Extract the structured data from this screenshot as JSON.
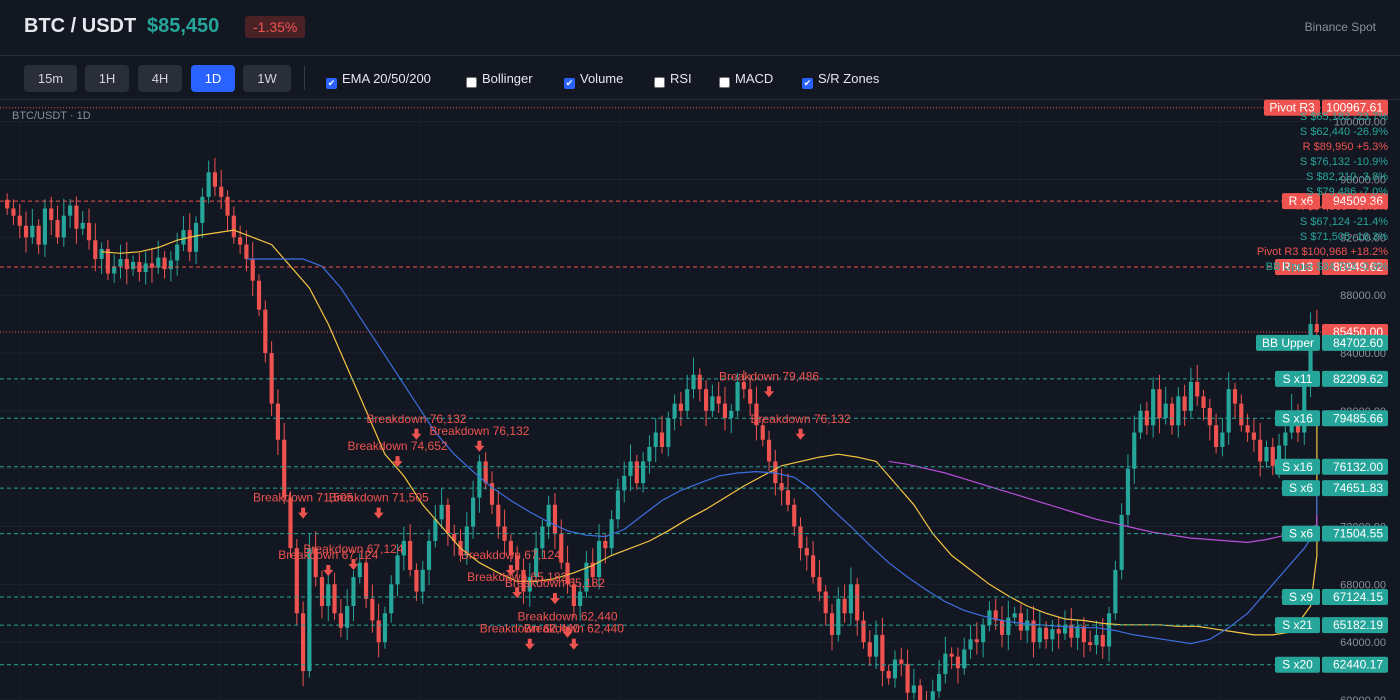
{
  "header": {
    "pair": "BTC / USDT",
    "price": "$85,450",
    "change": "-1.35%",
    "exchange": "Binance Spot"
  },
  "timeframes": [
    {
      "label": "15m",
      "active": false
    },
    {
      "label": "1H",
      "active": false
    },
    {
      "label": "4H",
      "active": false
    },
    {
      "label": "1D",
      "active": true
    },
    {
      "label": "1W",
      "active": false
    }
  ],
  "indicators": [
    {
      "label": "EMA 20/50/200",
      "checked": true
    },
    {
      "label": "Bollinger",
      "checked": false
    },
    {
      "label": "Volume",
      "checked": true
    },
    {
      "label": "RSI",
      "checked": false
    },
    {
      "label": "MACD",
      "checked": false
    },
    {
      "label": "S/R Zones",
      "checked": true
    }
  ],
  "chart_title": "BTC/USDT · 1D",
  "colors": {
    "bg": "#131722",
    "up": "#26a69a",
    "down": "#ef5350",
    "ema20": "#f5c542",
    "ema50": "#3d6fe0",
    "ema200": "#b84fd9",
    "accent": "#2962ff"
  },
  "chart_data": {
    "type": "candlestick",
    "ylim": [
      60000,
      101500
    ],
    "price_ticks": [
      100000,
      96000,
      92000,
      88000,
      84000,
      80000,
      76000,
      72000,
      68000,
      64000,
      60000
    ],
    "price_tick_labels": [
      "100000.00",
      "96000.00",
      "92000.00",
      "88000.00",
      "84000.00",
      "80000.00",
      "76000.00",
      "72000.00",
      "68000.00",
      "64000.00",
      "60000.00"
    ],
    "current_price": 85450,
    "pivot_r3": 100967.61,
    "levels": [
      {
        "kind": "R",
        "tag": "R x6",
        "price": 94509.36,
        "label": "94509.36"
      },
      {
        "kind": "R",
        "tag": "R x13",
        "price": 89949.62,
        "label": "89949.62"
      },
      {
        "kind": "S",
        "tag": "S x11",
        "price": 82209.62,
        "label": "82209.62"
      },
      {
        "kind": "S",
        "tag": "S x16",
        "price": 79485.66,
        "label": "79485.66"
      },
      {
        "kind": "S",
        "tag": "S x16",
        "price": 76132.0,
        "label": "76132.00"
      },
      {
        "kind": "S",
        "tag": "S x6",
        "price": 74651.83,
        "label": "74651.83"
      },
      {
        "kind": "S",
        "tag": "S x6",
        "price": 71504.55,
        "label": "71504.55"
      },
      {
        "kind": "S",
        "tag": "S x9",
        "price": 67124.15,
        "label": "67124.15"
      },
      {
        "kind": "S",
        "tag": "S x21",
        "price": 65182.19,
        "label": "65182.19"
      },
      {
        "kind": "S",
        "tag": "S x20",
        "price": 62440.17,
        "label": "62440.17"
      }
    ],
    "price_tag": "85450.00",
    "pivot_tag": {
      "tag": "Pivot R3",
      "label": "100967.61"
    },
    "bb_tag": {
      "tag": "BB Upper",
      "label": "84702.60",
      "price": 84702.6
    },
    "level_list": [
      {
        "text": "S $65,182 -23.7%",
        "kind": "S"
      },
      {
        "text": "S $62,440 -26.9%",
        "kind": "S"
      },
      {
        "text": "R $89,950 +5.3%",
        "kind": "R"
      },
      {
        "text": "S $76,132 -10.9%",
        "kind": "S"
      },
      {
        "text": "S $82,210 -3.8%",
        "kind": "S"
      },
      {
        "text": "S $79,486 -7.0%",
        "kind": "S"
      },
      {
        "text": "R $94,509 +10.6%",
        "kind": "R"
      },
      {
        "text": "S $67,124 -21.4%",
        "kind": "S"
      },
      {
        "text": "S $71,505 -16.3%",
        "kind": "S"
      },
      {
        "text": "Pivot R3 $100,968 +18.2%",
        "kind": "R"
      },
      {
        "text": "BB Upper $84,703 -0.9%",
        "kind": "S"
      }
    ],
    "annotations": [
      {
        "text": "Breakdown 71,505",
        "price": 71505,
        "day": 47
      },
      {
        "text": "Breakdown 67,124",
        "price": 67124,
        "day": 51
      },
      {
        "text": "Breakdown 67,124",
        "price": 67124,
        "day": 55
      },
      {
        "text": "Breakdown 71,505",
        "price": 71505,
        "day": 59
      },
      {
        "text": "Breakdown 74,652",
        "price": 74652,
        "day": 62
      },
      {
        "text": "Breakdown 76,132",
        "price": 76132,
        "day": 65
      },
      {
        "text": "Breakdown 76,132",
        "price": 76132,
        "day": 75
      },
      {
        "text": "Breakdown 67,124",
        "price": 67124,
        "day": 80
      },
      {
        "text": "Breakdown 65,182",
        "price": 65182,
        "day": 81
      },
      {
        "text": "Breakdown 62,440",
        "price": 62440,
        "day": 83
      },
      {
        "text": "Breakdown 65,182",
        "price": 65182,
        "day": 87
      },
      {
        "text": "Breakdown 62,440",
        "price": 62440,
        "day": 89
      },
      {
        "text": "Breakdown 62,440",
        "price": 62440,
        "day": 90
      },
      {
        "text": "Breakdown 79,486",
        "price": 79486,
        "day": 121
      },
      {
        "text": "Breakdown 76,132",
        "price": 76132,
        "day": 126
      }
    ],
    "closes": [
      94000,
      93500,
      92800,
      92000,
      92800,
      91500,
      94000,
      93200,
      92000,
      93500,
      94200,
      92600,
      93000,
      91800,
      90500,
      91200,
      89500,
      90000,
      90500,
      89800,
      90300,
      89600,
      90200,
      89900,
      90600,
      89800,
      90400,
      91500,
      92500,
      91000,
      93000,
      94800,
      96500,
      95500,
      94800,
      93500,
      92000,
      91500,
      90500,
      89000,
      87000,
      84000,
      80500,
      78000,
      74000,
      70500,
      66000,
      62000,
      70500,
      68500,
      66500,
      68000,
      66000,
      65000,
      66500,
      68500,
      69500,
      67000,
      65500,
      64000,
      66000,
      68000,
      70000,
      71000,
      69000,
      67500,
      69000,
      71000,
      72500,
      73500,
      71500,
      71000,
      70000,
      72000,
      74000,
      76500,
      75000,
      73500,
      72000,
      71000,
      70000,
      69000,
      67500,
      68500,
      70500,
      72000,
      73500,
      71500,
      69500,
      68000,
      66500,
      67500,
      69500,
      68500,
      71000,
      70500,
      72500,
      74500,
      75500,
      76500,
      75000,
      76500,
      77500,
      78500,
      77500,
      79500,
      80500,
      80000,
      81500,
      82500,
      81500,
      80000,
      81000,
      80500,
      79500,
      80000,
      82000,
      81500,
      80500,
      79000,
      78000,
      76500,
      75000,
      74500,
      73500,
      72000,
      70500,
      70000,
      68500,
      67500,
      66000,
      64500,
      67000,
      66000,
      68000,
      65500,
      64000,
      63000,
      64500,
      62000,
      61500,
      62800,
      62500,
      60500,
      61000,
      60000,
      59800,
      60600,
      61800,
      63200,
      63000,
      62200,
      63500,
      64200,
      64000,
      65200,
      66200,
      65500,
      64500,
      65700,
      66000,
      64800,
      65500,
      64000,
      65000,
      64200,
      64900,
      64600,
      65200,
      64300,
      65100,
      64000,
      63800,
      64500,
      63700,
      66000,
      69000,
      72800,
      76000,
      78500,
      80000,
      79000,
      81500,
      79500,
      80500,
      79000,
      81000,
      80000,
      82000,
      81000,
      80200,
      79000,
      77500,
      78500,
      81500,
      80500,
      79000,
      78500,
      78000,
      76500,
      77500,
      76200,
      77600,
      78500,
      80000,
      78500,
      82000,
      86000,
      85450
    ],
    "ema20": [
      91000,
      90900,
      91000,
      91300,
      91800,
      92100,
      92300,
      92500,
      92000,
      91500,
      90000,
      88500,
      86000,
      83000,
      80000,
      77000,
      75500,
      73500,
      72000,
      70500,
      69500,
      68800,
      68200,
      68200,
      68400,
      68800,
      69300,
      70000,
      70500,
      71000,
      71700,
      72500,
      73200,
      74000,
      74800,
      75500,
      76200,
      76500,
      76800,
      77000,
      76800,
      76500,
      75000,
      73500,
      71500,
      70000,
      69000,
      68000,
      67200,
      66500,
      66000,
      65600,
      65500,
      65300,
      65200,
      65200,
      65200,
      65100,
      65100,
      64900,
      64700,
      64500,
      64500,
      64700,
      66500,
      70000,
      73500,
      76000,
      77500,
      78500,
      78800,
      79000,
      79100
    ],
    "ema50": [
      90500,
      90500,
      90500,
      90500,
      90000,
      88500,
      86500,
      84500,
      82500,
      80500,
      78500,
      77000,
      75800,
      74700,
      73800,
      73000,
      72300,
      71700,
      71400,
      71300,
      71800,
      72800,
      73800,
      74500,
      75000,
      75500,
      75700,
      75800,
      75700,
      75400,
      74500,
      73200,
      72000,
      70700,
      69500,
      68500,
      67600,
      66800,
      66200,
      65800,
      65500,
      65300,
      65200,
      65100,
      65000,
      65000,
      64800,
      64500,
      64300,
      64100,
      63900,
      64200,
      65000,
      66000,
      67500,
      69000,
      70500,
      71800,
      73200,
      74500
    ],
    "ema200": [
      76500,
      76300,
      76000,
      75700,
      75300,
      74900,
      74500,
      74100,
      73700,
      73300,
      72900,
      72500,
      72200,
      71900,
      71600,
      71400,
      71200,
      71100,
      71000,
      70900,
      71100,
      71400,
      71800,
      72100,
      72300,
      72500,
      72700,
      72800
    ]
  }
}
